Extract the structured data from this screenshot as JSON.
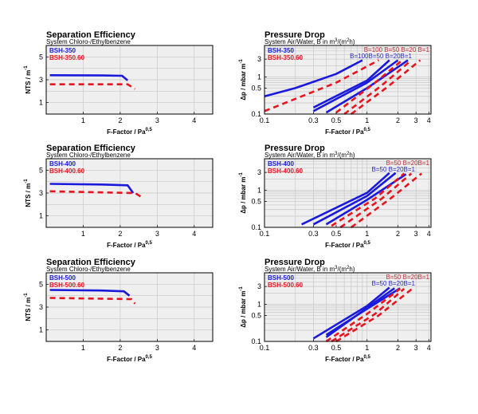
{
  "chart_data": [
    {
      "type": "line",
      "panel": "left",
      "row": 0,
      "title": "Separation Efficiency",
      "subtitle": "System Chloro-/Ethylbenzene",
      "xlabel": "F-Factor / Pa",
      "xlabel_sup": "0,5",
      "ylabel": "NTS / m",
      "ylabel_sup": "-1",
      "xlim": [
        0,
        4.5
      ],
      "ylim": [
        0,
        6
      ],
      "xscale": "linear",
      "yscale": "linear",
      "grid": true,
      "xticks": [
        "1",
        "2",
        "3",
        "4"
      ],
      "yticks": [
        "1",
        "3",
        "5"
      ],
      "legend_placement": "top-left",
      "series": [
        {
          "name": "BSH-350",
          "color": "#1a1adc",
          "style": "solid",
          "points": [
            [
              0.1,
              3.4
            ],
            [
              1.5,
              3.38
            ],
            [
              2.05,
              3.35
            ],
            [
              2.2,
              2.95
            ]
          ]
        },
        {
          "name": "BSH-350.60",
          "color": "#e8141e",
          "style": "dashed",
          "points": [
            [
              0.1,
              2.6
            ],
            [
              2.2,
              2.6
            ],
            [
              2.4,
              2.2
            ]
          ]
        }
      ]
    },
    {
      "type": "line",
      "panel": "right",
      "row": 0,
      "title": "Pressure Drop",
      "subtitle": "System Air/Water, B in m",
      "subtitle_sup1": "3",
      "subtitle_mid": "/(m",
      "subtitle_sup2": "2",
      "subtitle_end": "h)",
      "xlabel": "F-Factor / Pa",
      "xlabel_sup": "0,5",
      "ylabel": "Δp / mbar m",
      "ylabel_sup": "-1",
      "xlim": [
        0.1,
        4.2
      ],
      "ylim": [
        0.1,
        7
      ],
      "xscale": "log",
      "yscale": "log",
      "grid": true,
      "xticks": [
        "0.1",
        "0.3",
        "0.5",
        "1",
        "2",
        "3",
        "4"
      ],
      "yticks": [
        "0.1",
        "0.5",
        "1",
        "3"
      ],
      "legend_placement": "top-left",
      "legend": [
        {
          "name": "BSH-350",
          "color": "#1a1adc"
        },
        {
          "name": "BSH-350.60",
          "color": "#e8141e"
        }
      ],
      "labels_red": "B=100 B=50 B=20  B=1",
      "labels_blue": "B=100B=50 B=20B=1",
      "series": [
        {
          "name": "BSH-350 B=100",
          "color": "#1a1adc",
          "style": "solid",
          "points": [
            [
              0.1,
              0.3
            ],
            [
              0.2,
              0.5
            ],
            [
              0.5,
              1.2
            ],
            [
              0.9,
              2.8
            ]
          ]
        },
        {
          "name": "BSH-350 B=50",
          "color": "#1a1adc",
          "style": "solid",
          "points": [
            [
              0.3,
              0.15
            ],
            [
              1,
              0.8
            ],
            [
              1.65,
              2.8
            ]
          ]
        },
        {
          "name": "BSH-350 B=20",
          "color": "#1a1adc",
          "style": "solid",
          "points": [
            [
              0.3,
              0.12
            ],
            [
              1,
              0.7
            ],
            [
              2.0,
              2.8
            ]
          ]
        },
        {
          "name": "BSH-350 B=1",
          "color": "#1a1adc",
          "style": "solid",
          "points": [
            [
              0.4,
              0.11
            ],
            [
              1,
              0.5
            ],
            [
              2.5,
              2.8
            ]
          ]
        },
        {
          "name": "BSH-350.60 B=100",
          "color": "#e8141e",
          "style": "dashed",
          "points": [
            [
              0.1,
              0.12
            ],
            [
              0.5,
              0.7
            ],
            [
              1.3,
              2.8
            ]
          ]
        },
        {
          "name": "BSH-350.60 B=50",
          "color": "#e8141e",
          "style": "dashed",
          "points": [
            [
              0.5,
              0.11
            ],
            [
              1.2,
              0.7
            ],
            [
              2.2,
              2.8
            ]
          ]
        },
        {
          "name": "BSH-350.60 B=20",
          "color": "#e8141e",
          "style": "dashed",
          "points": [
            [
              0.6,
              0.1
            ],
            [
              1.4,
              0.6
            ],
            [
              2.7,
              2.8
            ]
          ]
        },
        {
          "name": "BSH-350.60 B=1",
          "color": "#e8141e",
          "style": "dashed",
          "points": [
            [
              0.7,
              0.1
            ],
            [
              1.6,
              0.55
            ],
            [
              3.3,
              2.8
            ]
          ]
        }
      ]
    },
    {
      "type": "line",
      "panel": "left",
      "row": 1,
      "title": "Separation Efficiency",
      "subtitle": "System Chloro-/Ethylbenzene",
      "xlabel": "F-Factor / Pa",
      "xlabel_sup": "0,5",
      "ylabel": "NTS / m",
      "ylabel_sup": "-1",
      "xlim": [
        0,
        4.5
      ],
      "ylim": [
        0,
        6
      ],
      "xscale": "linear",
      "yscale": "linear",
      "grid": true,
      "xticks": [
        "1",
        "2",
        "3",
        "4"
      ],
      "yticks": [
        "1",
        "3",
        "5"
      ],
      "legend_placement": "top-left",
      "series": [
        {
          "name": "BSH-400",
          "color": "#1a1adc",
          "style": "solid",
          "points": [
            [
              0.1,
              3.8
            ],
            [
              1.5,
              3.75
            ],
            [
              2.2,
              3.68
            ],
            [
              2.35,
              3.0
            ]
          ]
        },
        {
          "name": "BSH-400.60",
          "color": "#e8141e",
          "style": "dashed",
          "points": [
            [
              0.1,
              3.15
            ],
            [
              2.4,
              3.0
            ],
            [
              2.6,
              2.6
            ]
          ]
        }
      ]
    },
    {
      "type": "line",
      "panel": "right",
      "row": 1,
      "title": "Pressure Drop",
      "subtitle": "System Air/Water, B in m",
      "subtitle_sup1": "3",
      "subtitle_mid": "/(m",
      "subtitle_sup2": "2",
      "subtitle_end": "h)",
      "xlabel": "F-Factor / Pa",
      "xlabel_sup": "0,5",
      "ylabel": "Δp / mbar m",
      "ylabel_sup": "-1",
      "xlim": [
        0.1,
        4.2
      ],
      "ylim": [
        0.1,
        7
      ],
      "xscale": "log",
      "yscale": "log",
      "grid": true,
      "xticks": [
        "0.1",
        "0.3",
        "0.5",
        "1",
        "2",
        "3",
        "4"
      ],
      "yticks": [
        "0.1",
        "0.5",
        "1",
        "3"
      ],
      "legend_placement": "top-left",
      "legend": [
        {
          "name": "BSH-400",
          "color": "#1a1adc"
        },
        {
          "name": "BSH-400.60",
          "color": "#e8141e"
        }
      ],
      "labels_red": "B=50 B=20B=1",
      "labels_blue": "B=50 B=20B=1",
      "series": [
        {
          "name": "BSH-400 B=50",
          "color": "#1a1adc",
          "style": "solid",
          "points": [
            [
              0.23,
              0.12
            ],
            [
              1,
              0.85
            ],
            [
              1.65,
              2.9
            ]
          ]
        },
        {
          "name": "BSH-400 B=20",
          "color": "#1a1adc",
          "style": "solid",
          "points": [
            [
              0.3,
              0.12
            ],
            [
              1,
              0.7
            ],
            [
              1.9,
              2.9
            ]
          ]
        },
        {
          "name": "BSH-400 B=1",
          "color": "#1a1adc",
          "style": "solid",
          "points": [
            [
              0.4,
              0.12
            ],
            [
              1,
              0.55
            ],
            [
              2.4,
              2.7
            ]
          ]
        },
        {
          "name": "BSH-400.60 B=50",
          "color": "#e8141e",
          "style": "dashed",
          "points": [
            [
              0.45,
              0.11
            ],
            [
              1.2,
              0.6
            ],
            [
              2.3,
              2.8
            ]
          ]
        },
        {
          "name": "BSH-400.60 B=20",
          "color": "#e8141e",
          "style": "dashed",
          "points": [
            [
              0.55,
              0.1
            ],
            [
              1.4,
              0.6
            ],
            [
              2.7,
              2.8
            ]
          ]
        },
        {
          "name": "BSH-400.60 B=1",
          "color": "#e8141e",
          "style": "dashed",
          "points": [
            [
              0.7,
              0.1
            ],
            [
              1.7,
              0.6
            ],
            [
              3.4,
              2.8
            ]
          ]
        }
      ]
    },
    {
      "type": "line",
      "panel": "left",
      "row": 2,
      "title": "Separation Efficiency",
      "subtitle": "System Chloro-/Ethylbenzene",
      "xlabel": "F-Factor / Pa",
      "xlabel_sup": "0,5",
      "ylabel": "NTS / m",
      "ylabel_sup": "-1",
      "xlim": [
        0,
        4.5
      ],
      "ylim": [
        0,
        6
      ],
      "xscale": "linear",
      "yscale": "linear",
      "grid": true,
      "xticks": [
        "1",
        "2",
        "3",
        "4"
      ],
      "yticks": [
        "1",
        "3",
        "5"
      ],
      "legend_placement": "top-left",
      "series": [
        {
          "name": "BSH-500",
          "color": "#1a1adc",
          "style": "solid",
          "points": [
            [
              0.1,
              4.5
            ],
            [
              1.5,
              4.45
            ],
            [
              2.1,
              4.38
            ],
            [
              2.25,
              4.0
            ]
          ]
        },
        {
          "name": "BSH-500.60",
          "color": "#e8141e",
          "style": "dashed",
          "points": [
            [
              0.1,
              3.8
            ],
            [
              2.3,
              3.7
            ],
            [
              2.4,
              3.3
            ]
          ]
        }
      ]
    },
    {
      "type": "line",
      "panel": "right",
      "row": 2,
      "title": "Pressure Drop",
      "subtitle": "System Air/Water, B in m",
      "subtitle_sup1": "3",
      "subtitle_mid": "/(m",
      "subtitle_sup2": "2",
      "subtitle_end": "h)",
      "xlabel": "F-Factor / Pa",
      "xlabel_sup": "0,5",
      "ylabel": "Δp / mbar m",
      "ylabel_sup": "-1",
      "xlim": [
        0.1,
        4.2
      ],
      "ylim": [
        0.1,
        7
      ],
      "xscale": "log",
      "yscale": "log",
      "grid": true,
      "xticks": [
        "0.1",
        "0.3",
        "0.5",
        "1",
        "2",
        "3",
        "4"
      ],
      "yticks": [
        "0.1",
        "0.5",
        "1",
        "3"
      ],
      "legend_placement": "top-left",
      "legend": [
        {
          "name": "BSH-500",
          "color": "#1a1adc"
        },
        {
          "name": "BSH-500.60",
          "color": "#e8141e"
        }
      ],
      "labels_red": "B=50 B=20B=1",
      "labels_blue": "B=50 B=20B=1",
      "series": [
        {
          "name": "BSH-500 B=50",
          "color": "#1a1adc",
          "style": "solid",
          "points": [
            [
              0.3,
              0.12
            ],
            [
              1,
              0.9
            ],
            [
              1.65,
              2.8
            ]
          ]
        },
        {
          "name": "BSH-500 B=20",
          "color": "#1a1adc",
          "style": "solid",
          "points": [
            [
              0.4,
              0.13
            ],
            [
              1,
              0.8
            ],
            [
              1.85,
              2.7
            ]
          ]
        },
        {
          "name": "BSH-500 B=1",
          "color": "#1a1adc",
          "style": "solid",
          "points": [
            [
              0.4,
              0.15
            ],
            [
              1,
              0.75
            ],
            [
              2.1,
              2.7
            ]
          ]
        },
        {
          "name": "BSH-500.60 B=50",
          "color": "#e8141e",
          "style": "dashed",
          "points": [
            [
              0.4,
              0.1
            ],
            [
              1,
              0.55
            ],
            [
              2.1,
              2.6
            ]
          ]
        },
        {
          "name": "BSH-500.60 B=20",
          "color": "#e8141e",
          "style": "dashed",
          "points": [
            [
              0.45,
              0.1
            ],
            [
              1.2,
              0.55
            ],
            [
              2.3,
              2.6
            ]
          ]
        },
        {
          "name": "BSH-500.60 B=1",
          "color": "#e8141e",
          "style": "dashed",
          "points": [
            [
              0.5,
              0.1
            ],
            [
              1.3,
              0.5
            ],
            [
              2.8,
              2.7
            ]
          ]
        }
      ]
    }
  ]
}
